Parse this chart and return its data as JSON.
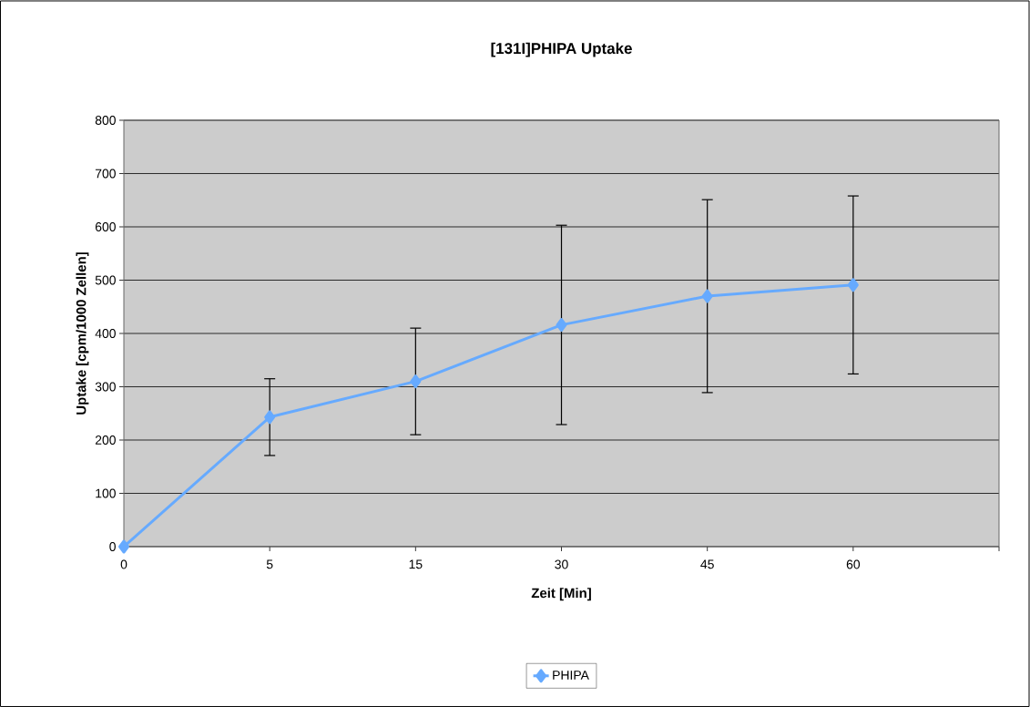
{
  "chart_data": {
    "type": "line",
    "title": "[131I]PHIPA Uptake",
    "xlabel": "Zeit [Min]",
    "ylabel": "Uptake [cpm/1000 Zellen]",
    "categories": [
      "0",
      "5",
      "15",
      "30",
      "45",
      "60",
      null
    ],
    "series": [
      {
        "name": "PHIPA",
        "color": "#66aaff",
        "values": [
          0,
          243,
          310,
          416,
          470,
          491,
          null
        ],
        "errors": [
          null,
          72,
          100,
          187,
          181,
          167,
          null
        ]
      }
    ],
    "ylim": [
      0,
      800
    ],
    "yticks": [
      0,
      100,
      200,
      300,
      400,
      500,
      600,
      700,
      800
    ],
    "grid": "y",
    "legend": "bottom",
    "marker": "diamond",
    "line_style": "solid"
  }
}
